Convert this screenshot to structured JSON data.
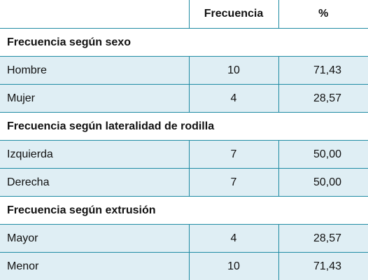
{
  "table": {
    "headers": {
      "label": "",
      "frequency": "Frecuencia",
      "percent": "%"
    },
    "sections": [
      {
        "title": "Frecuencia según sexo",
        "rows": [
          {
            "label": "Hombre",
            "frequency": "10",
            "percent": "71,43"
          },
          {
            "label": "Mujer",
            "frequency": "4",
            "percent": "28,57"
          }
        ]
      },
      {
        "title": "Frecuencia según lateralidad de rodilla",
        "rows": [
          {
            "label": "Izquierda",
            "frequency": "7",
            "percent": "50,00"
          },
          {
            "label": "Derecha",
            "frequency": "7",
            "percent": "50,00"
          }
        ]
      },
      {
        "title": "Frecuencia según extrusión",
        "rows": [
          {
            "label": "Mayor",
            "frequency": "4",
            "percent": "28,57"
          },
          {
            "label": "Menor",
            "frequency": "10",
            "percent": "71,43"
          }
        ]
      }
    ]
  }
}
